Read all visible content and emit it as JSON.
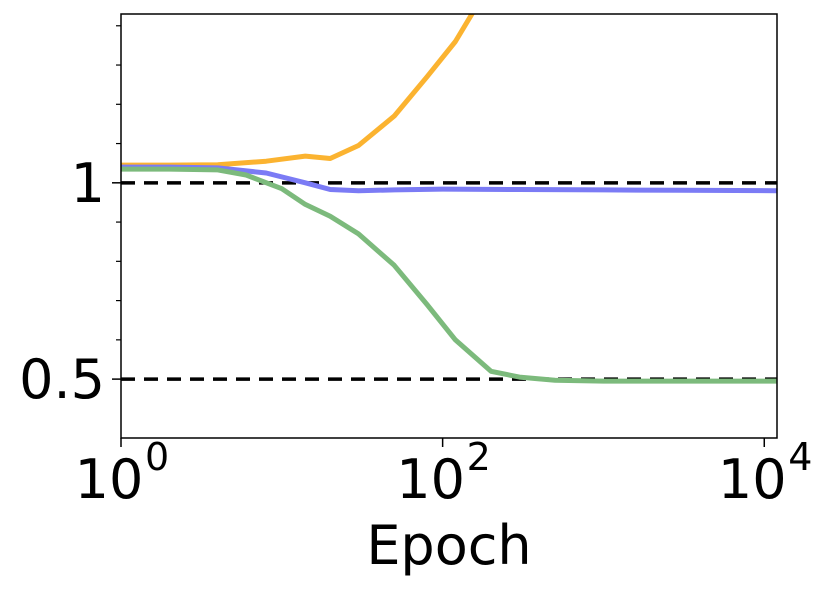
{
  "chart_data": {
    "type": "line",
    "title": "",
    "xlabel": "Epoch",
    "ylabel": "",
    "x_scale": "log",
    "xlim": [
      1,
      12000
    ],
    "ylim": [
      0.35,
      1.43
    ],
    "x_ticks": [
      {
        "value": 1,
        "base": "10",
        "exp": "0"
      },
      {
        "value": 100,
        "base": "10",
        "exp": "2"
      },
      {
        "value": 10000,
        "base": "10",
        "exp": "4"
      }
    ],
    "y_ticks": [
      {
        "value": 1,
        "label": "1"
      },
      {
        "value": 0.5,
        "label": "0.5"
      }
    ],
    "y_minor_ticks": [
      0.6,
      0.7,
      0.8,
      0.9,
      1.1,
      1.2,
      1.3,
      1.4
    ],
    "reference_lines": [
      {
        "y": 1,
        "style": "dashed",
        "color": "#000000"
      },
      {
        "y": 0.5,
        "style": "dashed",
        "color": "#000000"
      }
    ],
    "grid": false,
    "legend": "none",
    "series": [
      {
        "color": "#fbb330",
        "x": [
          1,
          2,
          4,
          8,
          14,
          20,
          30,
          50,
          80,
          120,
          180
        ],
        "y": [
          1.045,
          1.045,
          1.046,
          1.055,
          1.068,
          1.062,
          1.095,
          1.17,
          1.27,
          1.36,
          1.48
        ]
      },
      {
        "color": "#7b7bf5",
        "x": [
          1,
          2,
          4,
          8,
          14,
          20,
          30,
          50,
          100,
          300,
          1000,
          3000,
          12000
        ],
        "y": [
          1.04,
          1.04,
          1.038,
          1.025,
          1.0,
          0.983,
          0.98,
          0.982,
          0.984,
          0.983,
          0.982,
          0.981,
          0.98
        ]
      },
      {
        "color": "#7cba7c",
        "x": [
          1,
          2,
          4,
          6,
          10,
          14,
          20,
          30,
          50,
          80,
          120,
          200,
          300,
          500,
          1000,
          3000,
          12000
        ],
        "y": [
          1.035,
          1.035,
          1.033,
          1.02,
          0.985,
          0.945,
          0.915,
          0.87,
          0.79,
          0.69,
          0.6,
          0.52,
          0.505,
          0.497,
          0.495,
          0.495,
          0.495
        ]
      }
    ]
  }
}
